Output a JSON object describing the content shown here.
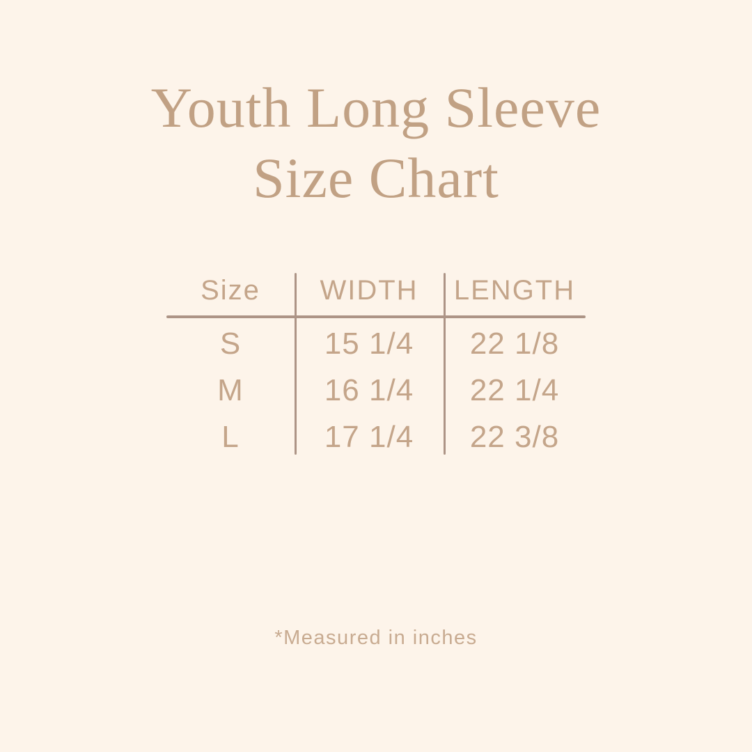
{
  "theme": {
    "bg": "#fdf4ea",
    "title_color": "#c1a184",
    "text_color": "#c4a58a",
    "line_color": "#ad9486",
    "note_color": "#c8ab91"
  },
  "title": {
    "line1": "Youth Long Sleeve",
    "line2": "Size Chart"
  },
  "table": {
    "headers": {
      "size": "Size",
      "width": "WIDTH",
      "length": "LENGTH"
    },
    "rows": [
      {
        "size": "S",
        "width": "15 1/4",
        "length": "22 1/8"
      },
      {
        "size": "M",
        "width": "16 1/4",
        "length": "22 1/4"
      },
      {
        "size": "L",
        "width": "17 1/4",
        "length": "22 3/8"
      }
    ]
  },
  "footnote": {
    "text": "*Measured in inches"
  },
  "chart_data": {
    "type": "table",
    "title": "Youth Long Sleeve Size Chart",
    "columns": [
      "Size",
      "WIDTH",
      "LENGTH"
    ],
    "rows": [
      [
        "S",
        "15 1/4",
        "22 1/8"
      ],
      [
        "M",
        "16 1/4",
        "22 1/4"
      ],
      [
        "L",
        "17 1/4",
        "22 3/8"
      ]
    ],
    "units_note": "*Measured in inches",
    "units": "inches"
  }
}
